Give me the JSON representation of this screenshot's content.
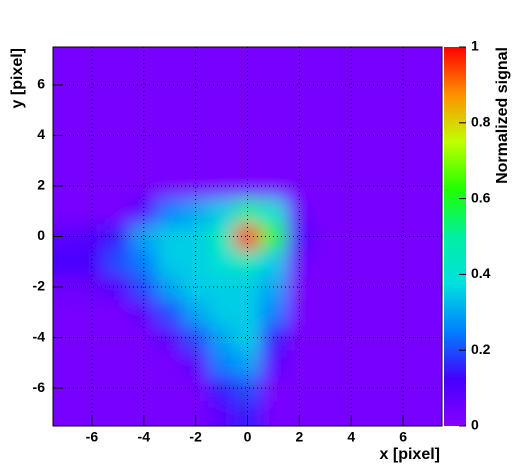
{
  "chart_data": {
    "type": "heatmap",
    "x_label": "x [pixel]",
    "y_label": "y [pixel]",
    "z_label": "Normalized signal",
    "x": [
      -7,
      -6,
      -5,
      -4,
      -3,
      -2,
      -1,
      0,
      1,
      2,
      3,
      4,
      5,
      6,
      7
    ],
    "y": [
      -7,
      -6,
      -5,
      -4,
      -3,
      -2,
      -1,
      0,
      1,
      2,
      3,
      4,
      5,
      6,
      7
    ],
    "z": [
      [
        0.03,
        0.03,
        0.03,
        0.03,
        0.03,
        0.03,
        0.08,
        0.15,
        0.03,
        0.03,
        0.03,
        0.03,
        0.03,
        0.03,
        0.03
      ],
      [
        0.03,
        0.03,
        0.03,
        0.03,
        0.03,
        0.03,
        0.15,
        0.2,
        0.03,
        0.03,
        0.03,
        0.03,
        0.03,
        0.03,
        0.03
      ],
      [
        0.03,
        0.03,
        0.03,
        0.03,
        0.03,
        0.08,
        0.25,
        0.3,
        0.08,
        0.03,
        0.03,
        0.03,
        0.03,
        0.03,
        0.03
      ],
      [
        0.03,
        0.03,
        0.03,
        0.03,
        0.08,
        0.2,
        0.3,
        0.35,
        0.15,
        0.03,
        0.03,
        0.03,
        0.03,
        0.03,
        0.03
      ],
      [
        0.03,
        0.03,
        0.03,
        0.08,
        0.2,
        0.3,
        0.35,
        0.35,
        0.25,
        0.03,
        0.03,
        0.03,
        0.03,
        0.03,
        0.03
      ],
      [
        0.05,
        0.06,
        0.1,
        0.2,
        0.3,
        0.35,
        0.35,
        0.35,
        0.3,
        0.03,
        0.03,
        0.03,
        0.03,
        0.03,
        0.03
      ],
      [
        0.12,
        0.12,
        0.2,
        0.25,
        0.35,
        0.35,
        0.4,
        0.45,
        0.35,
        0.05,
        0.03,
        0.03,
        0.03,
        0.03,
        0.03
      ],
      [
        0.08,
        0.1,
        0.15,
        0.3,
        0.35,
        0.35,
        0.45,
        1,
        0.6,
        0.1,
        0.03,
        0.03,
        0.03,
        0.03,
        0.03
      ],
      [
        0.03,
        0.03,
        0.03,
        0.1,
        0.25,
        0.3,
        0.35,
        0.5,
        0.4,
        0.05,
        0.03,
        0.03,
        0.03,
        0.03,
        0.03
      ],
      [
        0.03,
        0.03,
        0.03,
        0.03,
        0.03,
        0.03,
        0.03,
        0.03,
        0.03,
        0.03,
        0.03,
        0.03,
        0.03,
        0.03,
        0.03
      ],
      [
        0.03,
        0.03,
        0.03,
        0.03,
        0.03,
        0.03,
        0.03,
        0.03,
        0.03,
        0.03,
        0.03,
        0.03,
        0.03,
        0.03,
        0.03
      ],
      [
        0.03,
        0.03,
        0.03,
        0.03,
        0.03,
        0.03,
        0.03,
        0.03,
        0.03,
        0.03,
        0.03,
        0.03,
        0.03,
        0.03,
        0.03
      ],
      [
        0.03,
        0.03,
        0.03,
        0.03,
        0.03,
        0.03,
        0.03,
        0.03,
        0.03,
        0.03,
        0.03,
        0.03,
        0.03,
        0.03,
        0.03
      ],
      [
        0.03,
        0.03,
        0.03,
        0.03,
        0.03,
        0.03,
        0.03,
        0.03,
        0.03,
        0.03,
        0.03,
        0.03,
        0.03,
        0.03,
        0.03
      ],
      [
        0.03,
        0.03,
        0.03,
        0.03,
        0.03,
        0.03,
        0.03,
        0.03,
        0.03,
        0.03,
        0.03,
        0.03,
        0.03,
        0.03,
        0.03
      ]
    ],
    "xlim": [
      -7.5,
      7.5
    ],
    "ylim": [
      -7.5,
      7.5
    ],
    "zlim": [
      0,
      1
    ],
    "xticks": [
      -6,
      -4,
      -2,
      0,
      2,
      4,
      6
    ],
    "yticks": [
      -6,
      -4,
      -2,
      0,
      2,
      4,
      6
    ],
    "zticks": [
      0,
      0.2,
      0.4,
      0.6,
      0.8,
      1
    ],
    "grid": true,
    "colorscale": [
      "#8800ff",
      "#4400ff",
      "#0080ff",
      "#00e0e0",
      "#00f0a0",
      "#20ff00",
      "#c0ff00",
      "#ff9000",
      "#ff0000"
    ]
  }
}
